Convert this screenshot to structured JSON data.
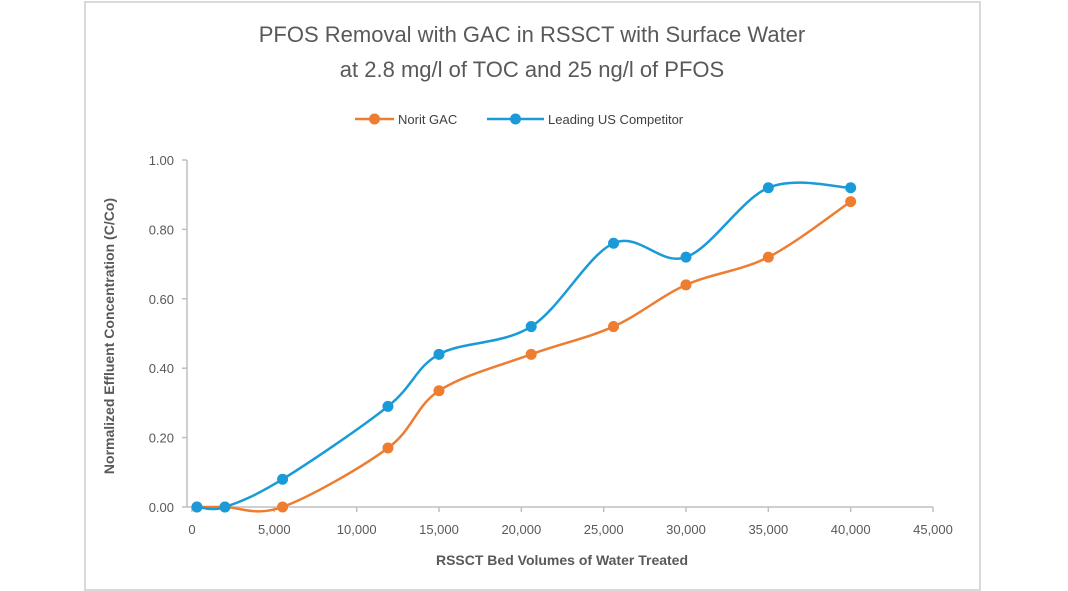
{
  "chart_data": {
    "type": "line",
    "title_lines": [
      "PFOS Removal with GAC in RSSCT with Surface Water",
      "at 2.8 mg/l of TOC and  25 ng/l of PFOS"
    ],
    "xlabel": "RSSCT Bed Volumes of Water Treated",
    "ylabel": "Normalized Effluent Concentration  (C/Co)",
    "xlim": [
      0,
      45000
    ],
    "ylim": [
      0,
      1.0
    ],
    "x_ticks": [
      0,
      5000,
      10000,
      15000,
      20000,
      25000,
      30000,
      35000,
      40000,
      45000
    ],
    "x_tick_labels": [
      "0",
      "5,000",
      "10,000",
      "15,000",
      "20,000",
      "25,000",
      "30,000",
      "35,000",
      "40,000",
      "45,000"
    ],
    "y_ticks": [
      0,
      0.2,
      0.4,
      0.6,
      0.8,
      1.0
    ],
    "y_tick_labels": [
      "0.00",
      "0.20",
      "0.40",
      "0.60",
      "0.80",
      "1.00"
    ],
    "grid": false,
    "legend_position": "top",
    "smoothed": true,
    "series": [
      {
        "name": "Norit GAC",
        "color": "#ED7D31",
        "points": [
          [
            300,
            0
          ],
          [
            2000,
            0
          ],
          [
            5500,
            0
          ],
          [
            11900,
            0.17
          ],
          [
            15000,
            0.335
          ],
          [
            20600,
            0.44
          ],
          [
            25600,
            0.52
          ],
          [
            30000,
            0.64
          ],
          [
            35000,
            0.72
          ],
          [
            40000,
            0.88
          ]
        ]
      },
      {
        "name": "Leading US Competitor",
        "color": "#1A9BD7",
        "points": [
          [
            300,
            0
          ],
          [
            2000,
            0
          ],
          [
            5500,
            0.08
          ],
          [
            11900,
            0.29
          ],
          [
            15000,
            0.44
          ],
          [
            20600,
            0.52
          ],
          [
            25600,
            0.76
          ],
          [
            30000,
            0.72
          ],
          [
            35000,
            0.92
          ],
          [
            40000,
            0.92
          ]
        ]
      }
    ]
  }
}
